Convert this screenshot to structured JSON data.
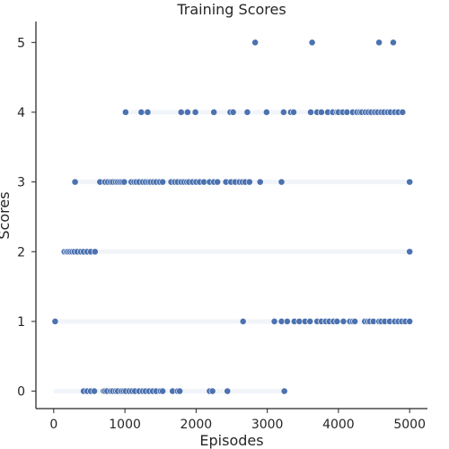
{
  "chart_data": {
    "type": "scatter",
    "title": "Training Scores",
    "xlabel": "Episodes",
    "ylabel": "Scores",
    "xlim": [
      -250,
      5250
    ],
    "ylim": [
      -0.25,
      5.3
    ],
    "xticks": [
      0,
      1000,
      2000,
      3000,
      4000,
      5000
    ],
    "yticks": [
      0,
      1,
      2,
      3,
      4,
      5
    ],
    "grid": false,
    "point_color": "#4c72b0",
    "series": [
      {
        "points": [
          [
            2830,
            5
          ],
          [
            3630,
            5
          ],
          [
            4570,
            5
          ],
          [
            4770,
            5
          ],
          [
            1010,
            4
          ],
          [
            1230,
            4
          ],
          [
            1320,
            4
          ],
          [
            1790,
            4
          ],
          [
            1880,
            4
          ],
          [
            1990,
            4
          ],
          [
            2250,
            4
          ],
          [
            2480,
            4
          ],
          [
            2520,
            4
          ],
          [
            2720,
            4
          ],
          [
            2990,
            4
          ],
          [
            3230,
            4
          ],
          [
            3330,
            4
          ],
          [
            3370,
            4
          ],
          [
            3610,
            4
          ],
          [
            3700,
            4
          ],
          [
            3760,
            4
          ],
          [
            3850,
            4
          ],
          [
            3920,
            4
          ],
          [
            3980,
            4
          ],
          [
            4000,
            4
          ],
          [
            4060,
            4
          ],
          [
            4120,
            4
          ],
          [
            4200,
            4
          ],
          [
            4260,
            4
          ],
          [
            4300,
            4
          ],
          [
            4330,
            4
          ],
          [
            4380,
            4
          ],
          [
            4420,
            4
          ],
          [
            4460,
            4
          ],
          [
            4510,
            4
          ],
          [
            4550,
            4
          ],
          [
            4600,
            4
          ],
          [
            4640,
            4
          ],
          [
            4690,
            4
          ],
          [
            4730,
            4
          ],
          [
            4790,
            4
          ],
          [
            4840,
            4
          ],
          [
            4900,
            4
          ],
          [
            300,
            3
          ],
          [
            650,
            3
          ],
          [
            720,
            3
          ],
          [
            760,
            3
          ],
          [
            800,
            3
          ],
          [
            830,
            3
          ],
          [
            870,
            3
          ],
          [
            900,
            3
          ],
          [
            930,
            3
          ],
          [
            960,
            3
          ],
          [
            990,
            3
          ],
          [
            1090,
            3
          ],
          [
            1130,
            3
          ],
          [
            1160,
            3
          ],
          [
            1200,
            3
          ],
          [
            1250,
            3
          ],
          [
            1290,
            3
          ],
          [
            1330,
            3
          ],
          [
            1360,
            3
          ],
          [
            1400,
            3
          ],
          [
            1440,
            3
          ],
          [
            1490,
            3
          ],
          [
            1530,
            3
          ],
          [
            1650,
            3
          ],
          [
            1700,
            3
          ],
          [
            1740,
            3
          ],
          [
            1790,
            3
          ],
          [
            1830,
            3
          ],
          [
            1870,
            3
          ],
          [
            1900,
            3
          ],
          [
            1950,
            3
          ],
          [
            2000,
            3
          ],
          [
            2050,
            3
          ],
          [
            2110,
            3
          ],
          [
            2190,
            3
          ],
          [
            2250,
            3
          ],
          [
            2300,
            3
          ],
          [
            2420,
            3
          ],
          [
            2490,
            3
          ],
          [
            2550,
            3
          ],
          [
            2610,
            3
          ],
          [
            2650,
            3
          ],
          [
            2690,
            3
          ],
          [
            2750,
            3
          ],
          [
            2900,
            3
          ],
          [
            3200,
            3
          ],
          [
            5000,
            3
          ],
          [
            150,
            2
          ],
          [
            180,
            2
          ],
          [
            200,
            2
          ],
          [
            230,
            2
          ],
          [
            260,
            2
          ],
          [
            290,
            2
          ],
          [
            330,
            2
          ],
          [
            380,
            2
          ],
          [
            420,
            2
          ],
          [
            470,
            2
          ],
          [
            520,
            2
          ],
          [
            580,
            2
          ],
          [
            5000,
            2
          ],
          [
            20,
            1
          ],
          [
            2660,
            1
          ],
          [
            3100,
            1
          ],
          [
            3200,
            1
          ],
          [
            3280,
            1
          ],
          [
            3380,
            1
          ],
          [
            3450,
            1
          ],
          [
            3530,
            1
          ],
          [
            3600,
            1
          ],
          [
            3700,
            1
          ],
          [
            3760,
            1
          ],
          [
            3820,
            1
          ],
          [
            3870,
            1
          ],
          [
            3930,
            1
          ],
          [
            3980,
            1
          ],
          [
            4070,
            1
          ],
          [
            4160,
            1
          ],
          [
            4200,
            1
          ],
          [
            4230,
            1
          ],
          [
            4370,
            1
          ],
          [
            4410,
            1
          ],
          [
            4440,
            1
          ],
          [
            4490,
            1
          ],
          [
            4570,
            1
          ],
          [
            4600,
            1
          ],
          [
            4650,
            1
          ],
          [
            4720,
            1
          ],
          [
            4790,
            1
          ],
          [
            4840,
            1
          ],
          [
            4890,
            1
          ],
          [
            4940,
            1
          ],
          [
            5000,
            1
          ],
          [
            420,
            0
          ],
          [
            470,
            0
          ],
          [
            520,
            0
          ],
          [
            570,
            0
          ],
          [
            700,
            0
          ],
          [
            720,
            0
          ],
          [
            750,
            0
          ],
          [
            800,
            0
          ],
          [
            830,
            0
          ],
          [
            870,
            0
          ],
          [
            900,
            0
          ],
          [
            950,
            0
          ],
          [
            980,
            0
          ],
          [
            1010,
            0
          ],
          [
            1060,
            0
          ],
          [
            1100,
            0
          ],
          [
            1140,
            0
          ],
          [
            1200,
            0
          ],
          [
            1250,
            0
          ],
          [
            1290,
            0
          ],
          [
            1340,
            0
          ],
          [
            1390,
            0
          ],
          [
            1440,
            0
          ],
          [
            1500,
            0
          ],
          [
            1530,
            0
          ],
          [
            1670,
            0
          ],
          [
            1740,
            0
          ],
          [
            1770,
            0
          ],
          [
            2190,
            0
          ],
          [
            2230,
            0
          ],
          [
            2440,
            0
          ],
          [
            3240,
            0
          ]
        ],
        "faint_bands": [
          {
            "y": 0,
            "x_from": 0,
            "x_to": 3240
          },
          {
            "y": 1,
            "x_from": 0,
            "x_to": 5000
          },
          {
            "y": 2,
            "x_from": 150,
            "x_to": 5000
          },
          {
            "y": 3,
            "x_from": 300,
            "x_to": 5000
          },
          {
            "y": 4,
            "x_from": 1000,
            "x_to": 4900
          }
        ]
      }
    ]
  }
}
